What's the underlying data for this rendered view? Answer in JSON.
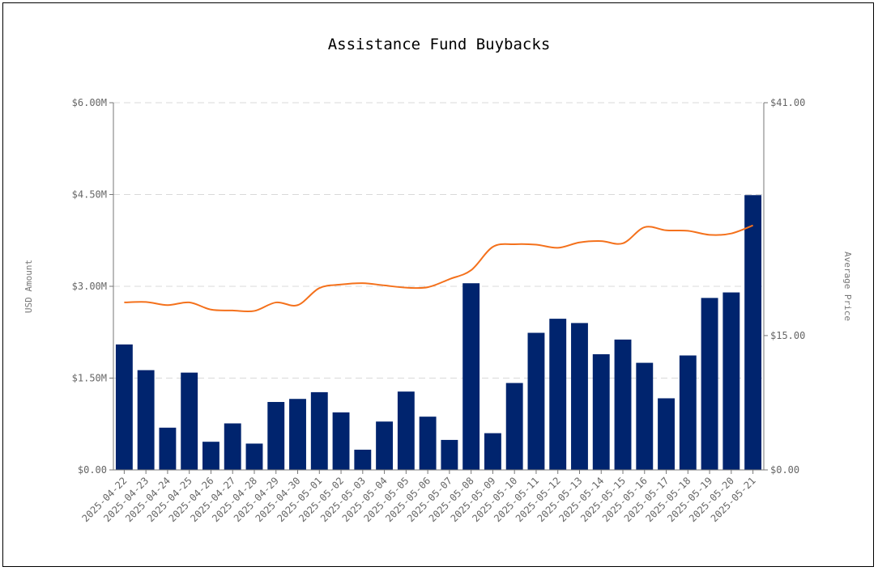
{
  "chart_data": {
    "type": "bar",
    "title": "Assistance Fund Buybacks",
    "ylabel": "USD Amount",
    "y2label": "Average Price",
    "ylim": [
      0,
      6000000
    ],
    "y2lim": [
      0,
      41
    ],
    "yticks": [
      0,
      1500000,
      3000000,
      4500000,
      6000000
    ],
    "ytick_labels": [
      "$0.00",
      "$1.50M",
      "$3.00M",
      "$4.50M",
      "$6.00M"
    ],
    "y2ticks": [
      0,
      15,
      41
    ],
    "y2tick_labels": [
      "$0.00",
      "$15.00",
      "$41.00"
    ],
    "grid": true,
    "bar_color": "#00246e",
    "line_color": "#f4711c",
    "categories": [
      "2025-04-22",
      "2025-04-23",
      "2025-04-24",
      "2025-04-25",
      "2025-04-26",
      "2025-04-27",
      "2025-04-28",
      "2025-04-29",
      "2025-04-30",
      "2025-05-01",
      "2025-05-02",
      "2025-05-03",
      "2025-05-04",
      "2025-05-05",
      "2025-05-06",
      "2025-05-07",
      "2025-05-08",
      "2025-05-09",
      "2025-05-10",
      "2025-05-11",
      "2025-05-12",
      "2025-05-13",
      "2025-05-14",
      "2025-05-15",
      "2025-05-16",
      "2025-05-17",
      "2025-05-18",
      "2025-05-19",
      "2025-05-20",
      "2025-05-21"
    ],
    "series": [
      {
        "type": "bar",
        "axis": "left",
        "values": [
          2050000,
          1630000,
          690000,
          1590000,
          460000,
          760000,
          430000,
          1110000,
          1160000,
          1270000,
          940000,
          330000,
          790000,
          1280000,
          870000,
          490000,
          3050000,
          600000,
          1420000,
          2240000,
          2470000,
          2400000,
          1890000,
          2130000,
          1750000,
          1170000,
          1870000,
          2810000,
          2900000,
          4490000
        ]
      },
      {
        "type": "line",
        "axis": "right",
        "values": [
          18.7,
          18.75,
          18.4,
          18.7,
          17.9,
          17.8,
          17.75,
          18.7,
          18.4,
          20.3,
          20.7,
          20.85,
          20.6,
          20.35,
          20.4,
          21.3,
          22.3,
          24.9,
          25.2,
          25.15,
          24.8,
          25.4,
          25.55,
          25.3,
          27.1,
          26.75,
          26.7,
          26.25,
          26.4,
          27.3
        ]
      }
    ]
  }
}
